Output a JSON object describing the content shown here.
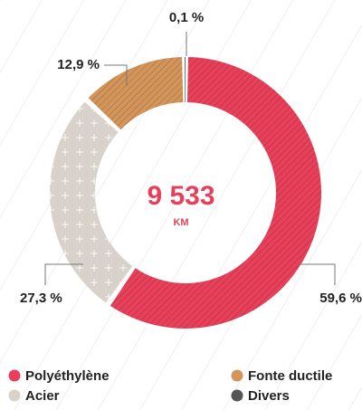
{
  "chart_data": {
    "type": "donut",
    "center_label": "9 533",
    "center_unit": "KM",
    "categories": [
      "Polyéthylène",
      "Acier",
      "Fonte ductile",
      "Divers"
    ],
    "values": [
      59.6,
      27.3,
      12.9,
      0.1
    ],
    "value_labels": [
      "59,6 %",
      "27,3 %",
      "12,9 %",
      "0,1 %"
    ],
    "colors": [
      "#e8405a",
      "#d8d2ca",
      "#d4955a",
      "#555555"
    ]
  }
}
